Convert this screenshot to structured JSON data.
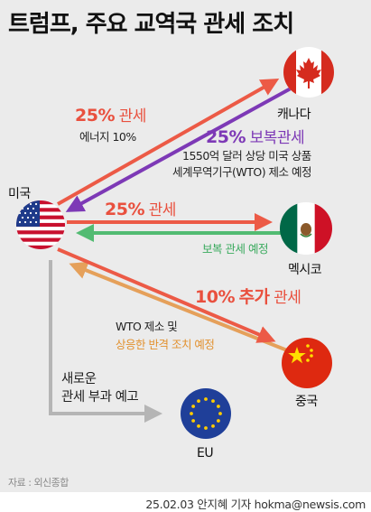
{
  "title": "트럼프, 주요 교역국 관세 조치",
  "countries": {
    "usa": "미국",
    "canada": "캐나다",
    "mexico": "멕시코",
    "china": "중국",
    "eu": "EU"
  },
  "actions": {
    "canada_tariff": {
      "pct": "25%",
      "word": "관세"
    },
    "canada_energy": "에너지 10%",
    "canada_retaliation": {
      "pct": "25%",
      "word": "보복관세"
    },
    "canada_goods": "1550억 달러 상당 미국 상품",
    "canada_wto": "세계무역기구(WTO) 제소 예정",
    "mexico_tariff": {
      "pct": "25%",
      "word": "관세"
    },
    "mexico_retaliation": "보복 관세 예정",
    "china_tariff": {
      "pct": "10%",
      "extra": "추가",
      "word": "관세"
    },
    "china_wto": "WTO 제소 및",
    "china_countermeasure": "상응한 반격 조치 예정",
    "eu_note_line1": "새로운",
    "eu_note_line2": "관세 부과 예고"
  },
  "source": "자료 : 외신종합",
  "credit": "25.02.03 안지혜 기자 hokma@newsis.com",
  "colors": {
    "us_action": "#ec5a46",
    "canada_retaliation": "#7d39b6",
    "mexico_retaliation": "#52bb72",
    "china_retaliation": "#e5a05a",
    "eu_notice": "#b5b5b5"
  },
  "icons": [
    "flag-usa-icon",
    "flag-canada-icon",
    "flag-mexico-icon",
    "flag-china-icon",
    "flag-eu-icon"
  ]
}
